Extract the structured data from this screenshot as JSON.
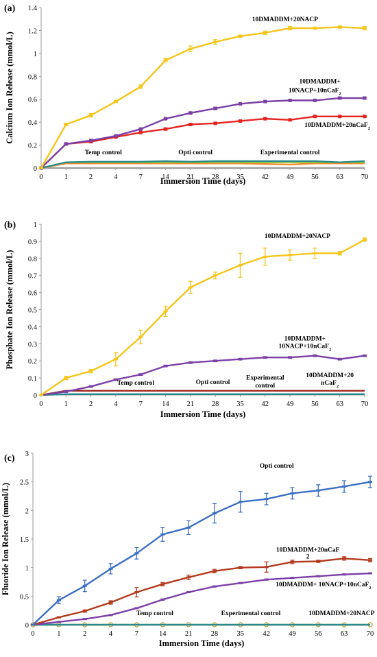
{
  "chart_data": [
    {
      "panel": "(a)",
      "type": "line",
      "xlabel": "Immersion Time (days)",
      "ylabel": "Calcium Ion Release (mmol/L)",
      "categories": [
        "0",
        "1",
        "2",
        "4",
        "7",
        "14",
        "21",
        "28",
        "35",
        "42",
        "49",
        "56",
        "63",
        "70"
      ],
      "ylim": [
        0,
        1.4
      ],
      "yticks": [
        0,
        0.2,
        0.4,
        0.6,
        0.8,
        1,
        1.2,
        1.4
      ],
      "grid": false,
      "series": [
        {
          "name": "10DMADDM+20NACP",
          "color": "#f5c518",
          "marker": "dash",
          "values": [
            0,
            0.38,
            0.46,
            0.58,
            0.71,
            0.94,
            1.04,
            1.1,
            1.15,
            1.18,
            1.22,
            1.22,
            1.23,
            1.22
          ],
          "errors": [
            0,
            0.01,
            0.015,
            0.01,
            0.015,
            0.015,
            0.025,
            0.02,
            0.01,
            0.015,
            0.015,
            0.01,
            0.01,
            0.015
          ]
        },
        {
          "name": "10DMADDM+ 10NACP+10nCaF2",
          "color": "#7b3fa6",
          "marker": "square",
          "values": [
            0,
            0.21,
            0.24,
            0.28,
            0.34,
            0.43,
            0.48,
            0.52,
            0.56,
            0.58,
            0.59,
            0.59,
            0.61,
            0.61
          ],
          "errors": [
            0,
            0.005,
            0.005,
            0.005,
            0.005,
            0.005,
            0.01,
            0.01,
            0.005,
            0.005,
            0.005,
            0.005,
            0.01,
            0.01
          ]
        },
        {
          "name": "10DMADDM+20nCaF2",
          "color": "#e52420",
          "marker": "square",
          "values": [
            0,
            0.21,
            0.23,
            0.27,
            0.31,
            0.34,
            0.38,
            0.39,
            0.41,
            0.43,
            0.42,
            0.45,
            0.45,
            0.45
          ],
          "errors": [
            0,
            0.005,
            0.005,
            0.005,
            0.005,
            0.01,
            0.01,
            0.005,
            0.005,
            0.005,
            0.005,
            0.005,
            0.005,
            0.005
          ]
        },
        {
          "name": "Temp control",
          "color": "#2a8a8c",
          "marker": "none",
          "values": [
            0,
            0.05,
            0.055,
            0.055,
            0.055,
            0.06,
            0.055,
            0.06,
            0.06,
            0.06,
            0.06,
            0.06,
            0.05,
            0.06
          ],
          "errors": []
        },
        {
          "name": "Opti control",
          "color": "#8cc63f",
          "marker": "none",
          "values": [
            0,
            0.05,
            0.05,
            0.05,
            0.05,
            0.05,
            0.05,
            0.05,
            0.05,
            0.05,
            0.05,
            0.05,
            0.05,
            0.05
          ],
          "errors": []
        },
        {
          "name": "Experimental control",
          "color": "#f28c28",
          "marker": "none",
          "values": [
            0,
            0.04,
            0.04,
            0.04,
            0.04,
            0.04,
            0.04,
            0.04,
            0.04,
            0.035,
            0.03,
            0.04,
            0.04,
            0.04
          ],
          "errors": []
        },
        {
          "name": "",
          "color": "#9e9e9e",
          "marker": "none",
          "values": [
            0,
            0,
            0,
            0,
            0,
            0,
            0,
            0,
            0,
            0,
            0,
            0,
            0,
            0
          ],
          "errors": []
        }
      ],
      "annotations": [
        {
          "text": "10DMADDM+20NACP",
          "x": 9.8,
          "y": 1.28
        },
        {
          "text": "10DMADDM+",
          "x": 11.2,
          "y": 0.74
        },
        {
          "text": "10NACP+10nCaF2",
          "x": 11.0,
          "y": 0.66
        },
        {
          "text": "10DMADDM+20nCaF2",
          "x": 11.9,
          "y": 0.36
        },
        {
          "text": "Temp control",
          "x": 2.5,
          "y": 0.12
        },
        {
          "text": "Opti control",
          "x": 6.2,
          "y": 0.12
        },
        {
          "text": "Experimental control",
          "x": 10.0,
          "y": 0.12
        }
      ]
    },
    {
      "panel": "(b)",
      "type": "line",
      "xlabel": "Immersion Time (days)",
      "ylabel": "Phosphate Ion Release (mmol/L)",
      "categories": [
        "0",
        "1",
        "2",
        "4",
        "7",
        "14",
        "21",
        "28",
        "35",
        "42",
        "49",
        "56",
        "63",
        "70"
      ],
      "ylim": [
        0,
        1
      ],
      "yticks": [
        0,
        0.1,
        0.2,
        0.3,
        0.4,
        0.5,
        0.6,
        0.7,
        0.8,
        0.9,
        1
      ],
      "grid": false,
      "series": [
        {
          "name": "10DMADDM+20NACP",
          "color": "#f5c518",
          "marker": "dash",
          "values": [
            0,
            0.1,
            0.14,
            0.21,
            0.34,
            0.49,
            0.63,
            0.7,
            0.76,
            0.81,
            0.82,
            0.83,
            0.83,
            0.91
          ],
          "errors": [
            0,
            0.01,
            0.01,
            0.04,
            0.04,
            0.03,
            0.035,
            0.02,
            0.07,
            0.05,
            0.03,
            0.03,
            0.01,
            0.01
          ]
        },
        {
          "name": "10DMADDM+ 10NACP+10nCaF2",
          "color": "#7b3fa6",
          "marker": "dash",
          "values": [
            0,
            0.02,
            0.05,
            0.09,
            0.12,
            0.17,
            0.19,
            0.2,
            0.21,
            0.22,
            0.22,
            0.23,
            0.21,
            0.23
          ],
          "errors": [
            0,
            0.005,
            0.005,
            0.005,
            0.005,
            0.005,
            0.005,
            0.005,
            0.005,
            0.005,
            0.005,
            0.005,
            0.005,
            0.005
          ]
        },
        {
          "name": "Temp control",
          "color": "#2a8a8c",
          "marker": "none",
          "values": [
            0,
            0.005,
            0.005,
            0.005,
            0.005,
            0.005,
            0.005,
            0.005,
            0.005,
            0.005,
            0.005,
            0.005,
            0.005,
            0.005
          ],
          "errors": []
        },
        {
          "name": "10DMADDM+20 nCaF2",
          "color": "#9e2a1e",
          "marker": "none",
          "values": [
            0,
            0.025,
            0.025,
            0.025,
            0.025,
            0.025,
            0.025,
            0.025,
            0.025,
            0.025,
            0.025,
            0.025,
            0.025,
            0.025
          ],
          "errors": []
        }
      ],
      "annotations": [
        {
          "text": "10DMADDM+20NACP",
          "x": 10.3,
          "y": 0.92
        },
        {
          "text": "10DMADDM+",
          "x": 10.6,
          "y": 0.32
        },
        {
          "text": "10NACP+10nCaF2",
          "x": 10.6,
          "y": 0.275
        },
        {
          "text": "Temp control",
          "x": 3.8,
          "y": 0.06
        },
        {
          "text": "Opti control",
          "x": 6.9,
          "y": 0.065
        },
        {
          "text": "Experimental",
          "x": 9.0,
          "y": 0.09
        },
        {
          "text": "control",
          "x": 9.0,
          "y": 0.045
        },
        {
          "text": "10DMADDM+20",
          "x": 11.6,
          "y": 0.105
        },
        {
          "text": "nCaF2",
          "x": 11.6,
          "y": 0.06
        }
      ]
    },
    {
      "panel": "(c)",
      "type": "line",
      "xlabel": "Immersion Time (days)",
      "ylabel": "Fluoride Ion Release (mmol/L)",
      "categories": [
        "0",
        "1",
        "2",
        "4",
        "7",
        "14",
        "21",
        "28",
        "35",
        "42",
        "49",
        "56",
        "63",
        "70"
      ],
      "ylim": [
        0,
        3
      ],
      "yticks": [
        0,
        0.5,
        1,
        1.5,
        2,
        2.5,
        3
      ],
      "grid": false,
      "series": [
        {
          "name": "Opti control",
          "color": "#3a6fc4",
          "marker": "dash",
          "values": [
            0,
            0.43,
            0.68,
            0.98,
            1.25,
            1.58,
            1.7,
            1.95,
            2.15,
            2.2,
            2.3,
            2.35,
            2.42,
            2.5
          ],
          "errors": [
            0,
            0.06,
            0.1,
            0.09,
            0.1,
            0.12,
            0.12,
            0.17,
            0.18,
            0.1,
            0.1,
            0.1,
            0.1,
            0.1
          ]
        },
        {
          "name": "10DMADDM+20nCaF",
          "color": "#b23a1e",
          "marker": "dash",
          "values": [
            0,
            0.13,
            0.24,
            0.39,
            0.57,
            0.71,
            0.83,
            0.94,
            1.0,
            1.01,
            1.1,
            1.11,
            1.16,
            1.13
          ],
          "errors": [
            0,
            0.01,
            0.02,
            0.03,
            0.08,
            0.03,
            0.04,
            0.03,
            0.02,
            0.09,
            0.03,
            0.02,
            0.03,
            0.03
          ]
        },
        {
          "name": "10DMADDM+ 10NACP+10nCaF2",
          "color": "#7b3fa6",
          "marker": "dash",
          "values": [
            0,
            0.05,
            0.1,
            0.17,
            0.29,
            0.44,
            0.57,
            0.67,
            0.73,
            0.79,
            0.82,
            0.85,
            0.88,
            0.9
          ],
          "errors": [
            0,
            0.005,
            0.005,
            0.005,
            0.005,
            0.01,
            0.01,
            0.01,
            0.01,
            0.01,
            0.01,
            0.01,
            0.01,
            0.01
          ]
        },
        {
          "name": "Temp control",
          "color": "#2a8a8c",
          "marker": "none",
          "values": [
            0,
            0,
            0,
            0,
            0,
            0,
            0,
            0,
            0,
            0,
            0,
            0,
            0,
            0
          ],
          "errors": []
        },
        {
          "name": "10DMADDM+20NACP",
          "color": "#c8c83a",
          "marker": "circle",
          "values": [
            0,
            0,
            0,
            0,
            0,
            0,
            0,
            0,
            0,
            0,
            0,
            0,
            0,
            0
          ],
          "errors": []
        }
      ],
      "annotations": [
        {
          "text": "Opti control",
          "x": 9.4,
          "y": 2.75
        },
        {
          "text": "10DMADDM+20nCaF",
          "x": 10.6,
          "y": 1.28
        },
        {
          "text": "2",
          "x": 10.6,
          "y": 1.16
        },
        {
          "text": "10DMADDM+ 10NACP+10nCaF2",
          "x": 11.2,
          "y": 0.67
        },
        {
          "text": "Temp control",
          "x": 4.7,
          "y": 0.17
        },
        {
          "text": "Experimental control",
          "x": 8.4,
          "y": 0.17
        },
        {
          "text": "10DMADDM+20NACP",
          "x": 11.9,
          "y": 0.17
        }
      ]
    }
  ]
}
